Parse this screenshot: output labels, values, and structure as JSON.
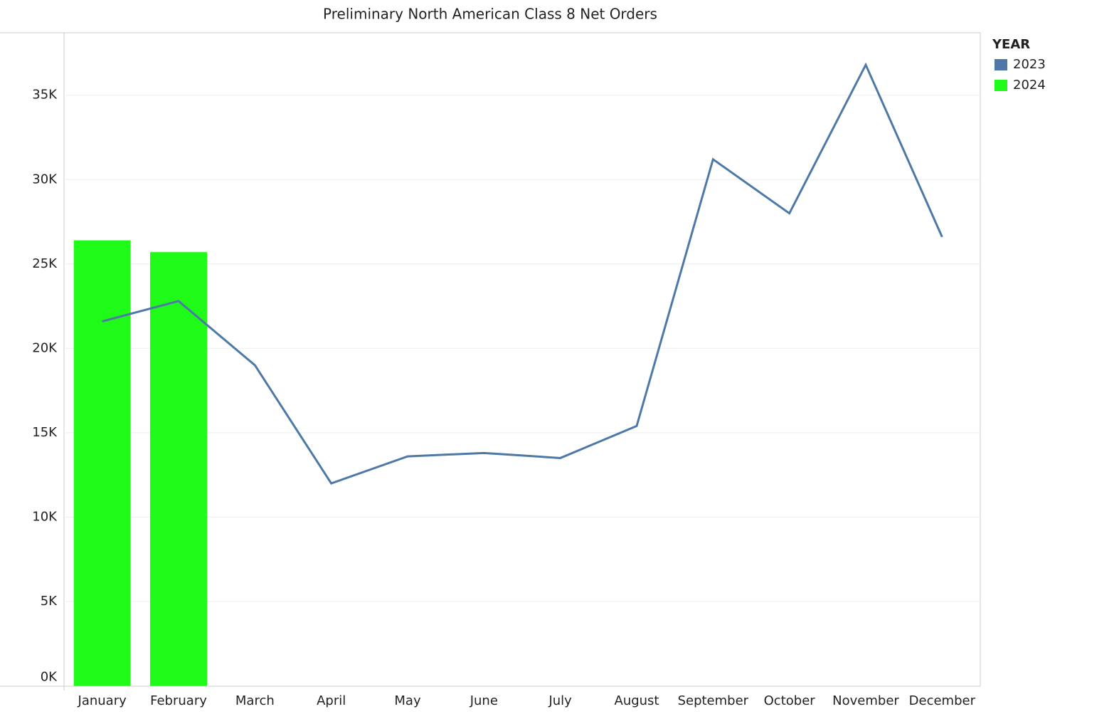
{
  "chart_data": {
    "type": "combo",
    "title": "Preliminary North American Class 8 Net Orders",
    "categories": [
      "January",
      "February",
      "March",
      "April",
      "May",
      "June",
      "July",
      "August",
      "September",
      "October",
      "November",
      "December"
    ],
    "series": [
      {
        "name": "2023",
        "type": "line",
        "color": "#4e79a7",
        "values": [
          21600,
          22800,
          19000,
          12000,
          13600,
          13800,
          13500,
          15400,
          31200,
          28000,
          36800,
          26600
        ]
      },
      {
        "name": "2024",
        "type": "bar",
        "color": "#1ffa19",
        "values": [
          26400,
          25700,
          null,
          null,
          null,
          null,
          null,
          null,
          null,
          null,
          null,
          null
        ]
      }
    ],
    "ylim": [
      0,
      38700
    ],
    "yticks": [
      {
        "value": 0,
        "label": "0K"
      },
      {
        "value": 5000,
        "label": "5K"
      },
      {
        "value": 10000,
        "label": "10K"
      },
      {
        "value": 15000,
        "label": "15K"
      },
      {
        "value": 20000,
        "label": "20K"
      },
      {
        "value": 25000,
        "label": "25K"
      },
      {
        "value": 30000,
        "label": "30K"
      },
      {
        "value": 35000,
        "label": "35K"
      }
    ],
    "grid": true,
    "legend_title": "YEAR",
    "legend_position": "right"
  }
}
